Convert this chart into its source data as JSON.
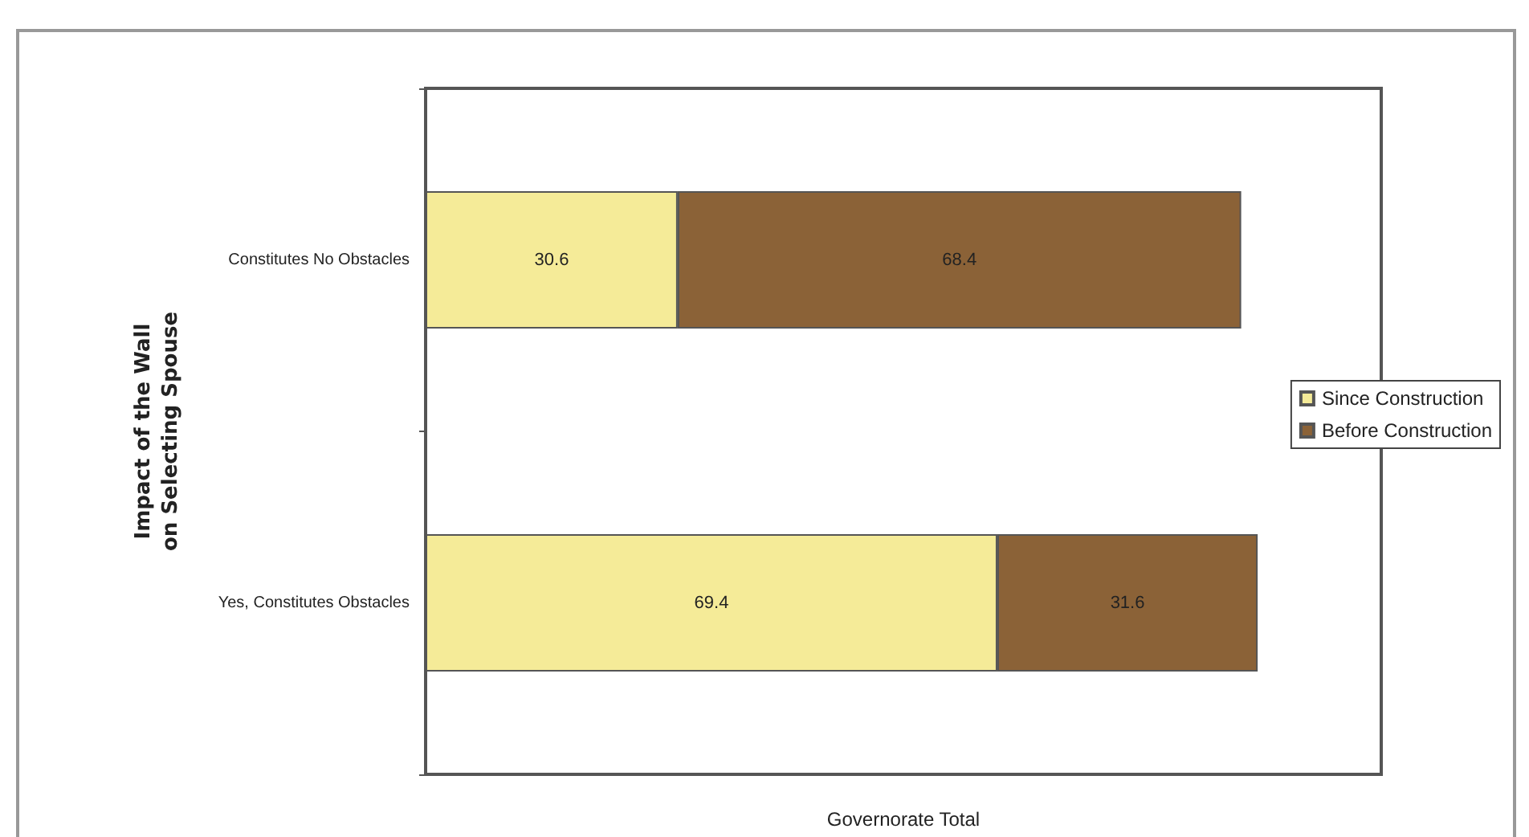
{
  "chart_data": {
    "type": "bar",
    "orientation": "horizontal",
    "stacked": true,
    "xlabel": "Governorate Total",
    "ylabel": "Impact of the Wall\non Selecting Spouse",
    "categories": [
      "Constitutes No Obstacles",
      "Yes, Constitutes Obstacles"
    ],
    "series": [
      {
        "name": "Since Construction",
        "color": "#f5eb98",
        "values": [
          30.6,
          69.4
        ]
      },
      {
        "name": "Before Construction",
        "color": "#8b6237",
        "values": [
          68.4,
          31.6
        ]
      }
    ],
    "xlim": [
      0,
      116
    ],
    "data_labels": true,
    "legend": "right",
    "tick_labels": "y",
    "grid": false
  }
}
